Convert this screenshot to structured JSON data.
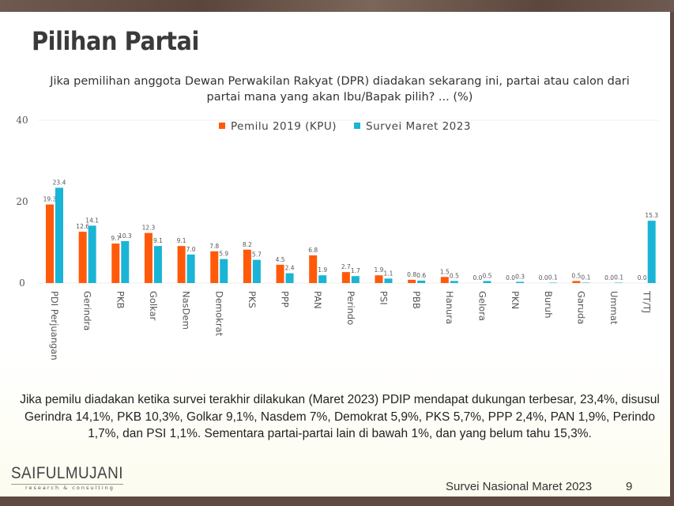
{
  "slide": {
    "title": "Pilihan Partai",
    "question": "Jika pemilihan anggota Dewan Perwakilan Rakyat (DPR) diadakan sekarang ini, partai atau calon dari partai mana yang akan Ibu/Bapak pilih?  ... (%)",
    "note": "Jika pemilu diadakan ketika survei terakhir dilakukan (Maret 2023) PDIP mendapat dukungan terbesar, 23,4%, disusul Gerindra 14,1%, PKB 10,3%, Golkar 9,1%, Nasdem 7%, Demokrat 5,9%, PKS 5,7%, PPP 2,4%, PAN 1,9%, Perindo 1,7%, dan PSI 1,1%. Sementara partai-partai lain di bawah 1%, dan yang belum tahu 15,3%.",
    "logo_text": "SAIFULMUJANI",
    "logo_subtext": "research & consulting",
    "footer": "Survei Nasional Maret 2023",
    "page_number": "9"
  },
  "chart_data": {
    "type": "bar",
    "categories": [
      "PDI Perjuangan",
      "Gerindra",
      "PKB",
      "Golkar",
      "NasDem",
      "Demokrat",
      "PKS",
      "PPP",
      "PAN",
      "Perindo",
      "PSI",
      "PBB",
      "Hanura",
      "Gelora",
      "PKN",
      "Buruh",
      "Garuda",
      "Ummat",
      "TT/TJ"
    ],
    "series": [
      {
        "name": "Pemilu 2019 (KPU)",
        "color": "#ff5a0a",
        "values": [
          19.3,
          12.6,
          9.7,
          12.3,
          9.1,
          7.8,
          8.2,
          4.5,
          6.8,
          2.7,
          1.9,
          0.8,
          1.5,
          0.0,
          0.0,
          0.0,
          0.5,
          0.0,
          0.0
        ]
      },
      {
        "name": "Survei Maret 2023",
        "color": "#1ab4d6",
        "values": [
          23.4,
          14.1,
          10.3,
          9.1,
          7.0,
          5.9,
          5.7,
          2.4,
          1.9,
          1.7,
          1.1,
          0.6,
          0.5,
          0.5,
          0.3,
          0.1,
          0.1,
          0.1,
          15.3
        ]
      }
    ],
    "yticks": [
      "0",
      "20",
      "40"
    ],
    "ylim": [
      0,
      40
    ],
    "legend": "top",
    "grid": false
  }
}
